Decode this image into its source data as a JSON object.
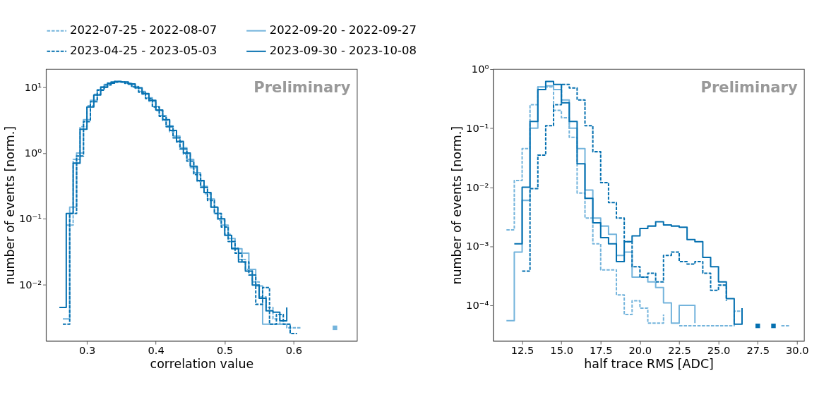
{
  "chart_data": [
    {
      "type": "step",
      "xlabel": "correlation value",
      "ylabel": "number of events [norm.]",
      "log": true,
      "legend": "top",
      "grid": false,
      "xlim": [
        0.2406,
        0.692
      ],
      "xticks": [
        0.3,
        0.4,
        0.5,
        0.6
      ],
      "ylim": [
        0.00139,
        18.8
      ],
      "yticks": [
        {
          "value": 0.01,
          "label": "10⁻²"
        },
        {
          "value": 0.1,
          "label": "10⁻¹"
        },
        {
          "value": 1,
          "label": "10⁰"
        },
        {
          "value": 10,
          "label": "10¹"
        }
      ],
      "annotations": [
        "Preliminary"
      ],
      "series": [
        {
          "name": "2022-07-25 - 2022-08-07",
          "color": "#74b4dc",
          "line_style": "dashed",
          "x": [
            0.27,
            0.28,
            0.29,
            0.3,
            0.31,
            0.32,
            0.33,
            0.34,
            0.35,
            0.36,
            0.37,
            0.38,
            0.39,
            0.4,
            0.41,
            0.42,
            0.43,
            0.44,
            0.45,
            0.46,
            0.47,
            0.48,
            0.49,
            0.5,
            0.51,
            0.52,
            0.53,
            0.54,
            0.55,
            0.56,
            0.57,
            0.58,
            0.59,
            0.6,
            0.61,
            0.62,
            0.63,
            0.64,
            0.65,
            0.66
          ],
          "values": [
            0.08,
            0.8,
            2.5,
            5.2,
            7.8,
            10,
            11.6,
            12.2,
            11.9,
            11,
            9.6,
            7.8,
            6.1,
            4.4,
            3.1,
            2.1,
            1.45,
            0.95,
            0.6,
            0.37,
            0.24,
            0.15,
            0.095,
            0.058,
            0.036,
            0.024,
            0.017,
            0.011,
            0.0065,
            0.0045,
            0.003,
            0.0025,
            0.0022,
            0.0022,
            0.0022,
            null,
            null,
            null,
            null,
            0.0022
          ]
        },
        {
          "name": "2022-09-20 - 2022-09-27",
          "color": "#74b4dc",
          "line_style": "solid",
          "x": [
            0.265,
            0.275,
            0.285,
            0.295,
            0.305,
            0.315,
            0.325,
            0.335,
            0.345,
            0.355,
            0.365,
            0.375,
            0.385,
            0.395,
            0.405,
            0.415,
            0.425,
            0.435,
            0.445,
            0.455,
            0.465,
            0.475,
            0.485,
            0.495,
            0.505,
            0.515,
            0.525,
            0.535,
            0.545,
            0.555,
            0.565,
            0.575,
            0.585,
            0.595
          ],
          "values": [
            0.003,
            0.15,
            1.0,
            3.2,
            6.3,
            9.2,
            11,
            12,
            12.1,
            11.5,
            10.2,
            8.6,
            6.9,
            5.1,
            3.7,
            2.6,
            1.8,
            1.2,
            0.8,
            0.5,
            0.31,
            0.2,
            0.12,
            0.08,
            0.05,
            0.035,
            0.03,
            0.017,
            0.0095,
            0.0025,
            0.0025,
            0.0025,
            0.0025,
            0.0018
          ]
        },
        {
          "name": "2023-04-25 - 2023-05-03",
          "color": "#0570b0",
          "line_style": "dashed",
          "x": [
            0.265,
            0.275,
            0.285,
            0.295,
            0.305,
            0.315,
            0.325,
            0.335,
            0.345,
            0.355,
            0.365,
            0.375,
            0.385,
            0.395,
            0.405,
            0.415,
            0.425,
            0.435,
            0.445,
            0.455,
            0.465,
            0.475,
            0.485,
            0.495,
            0.505,
            0.515,
            0.525,
            0.535,
            0.545,
            0.555,
            0.565,
            0.575,
            0.585,
            0.595,
            0.605
          ],
          "values": [
            0.0025,
            0.12,
            0.9,
            3.0,
            6.0,
            9.0,
            10.8,
            11.9,
            12,
            11.4,
            10.1,
            8.4,
            6.7,
            5.0,
            3.6,
            2.5,
            1.7,
            1.15,
            0.75,
            0.47,
            0.3,
            0.19,
            0.12,
            0.075,
            0.045,
            0.03,
            0.022,
            0.014,
            0.005,
            0.009,
            0.0025,
            0.0035,
            0.0025,
            0.0018,
            0.0018
          ]
        },
        {
          "name": "2023-09-30 - 2023-10-08",
          "color": "#0570b0",
          "line_style": "solid",
          "x": [
            0.26,
            0.27,
            0.28,
            0.29,
            0.3,
            0.31,
            0.32,
            0.33,
            0.34,
            0.35,
            0.36,
            0.37,
            0.38,
            0.39,
            0.4,
            0.41,
            0.42,
            0.43,
            0.44,
            0.45,
            0.46,
            0.47,
            0.48,
            0.49,
            0.5,
            0.51,
            0.52,
            0.53,
            0.54,
            0.55,
            0.56,
            0.57,
            0.58,
            0.59
          ],
          "values": [
            0.0045,
            0.12,
            0.7,
            2.3,
            5.0,
            7.6,
            10,
            11.5,
            12.2,
            12,
            11.2,
            9.8,
            8.0,
            6.3,
            4.5,
            3.2,
            2.2,
            1.5,
            1.0,
            0.63,
            0.38,
            0.25,
            0.15,
            0.1,
            0.056,
            0.035,
            0.022,
            0.016,
            0.0098,
            0.0062,
            0.004,
            0.0038,
            0.0028,
            0.0045
          ]
        }
      ]
    },
    {
      "type": "step",
      "xlabel": "half trace RMS [ADC]",
      "ylabel": "number of events [norm.]",
      "log": true,
      "grid": false,
      "xlim": [
        10.65,
        30.45
      ],
      "xticks": [
        12.5,
        {
          "value": 15,
          "label": "15.0"
        },
        17.5,
        {
          "value": 20,
          "label": "20.0"
        },
        22.5,
        {
          "value": 25,
          "label": "25.0"
        },
        27.5,
        {
          "value": 30,
          "label": "30.0"
        }
      ],
      "ylim": [
        2.5e-05,
        1
      ],
      "yticks": [
        {
          "value": 0.0001,
          "label": "10⁻⁴"
        },
        {
          "value": 0.001,
          "label": "10⁻³"
        },
        {
          "value": 0.01,
          "label": "10⁻²"
        },
        {
          "value": 0.1,
          "label": "10⁻¹"
        },
        {
          "value": 1,
          "label": "10⁰"
        }
      ],
      "annotations": [
        "Preliminary"
      ],
      "series": [
        {
          "name": "2022-07-25 - 2022-08-07",
          "color": "#74b4dc",
          "line_style": "dashed",
          "x": [
            11.5,
            12,
            12.5,
            13,
            13.5,
            14,
            14.5,
            15,
            15.5,
            16,
            16.5,
            17,
            17.5,
            18,
            18.5,
            19,
            19.5,
            20,
            20.5,
            21,
            21.5,
            22,
            22.5,
            23,
            23.5,
            24,
            24.5,
            25,
            25.5,
            26,
            26.5,
            27,
            27.5,
            28,
            28.5,
            29,
            29.5
          ],
          "values": [
            0.0019,
            0.013,
            0.045,
            0.25,
            0.5,
            0.5,
            0.2,
            0.15,
            0.07,
            0.008,
            0.003,
            0.0011,
            0.0004,
            0.0004,
            0.00015,
            7e-05,
            0.00012,
            9e-05,
            5e-05,
            5e-05,
            7e-05,
            null,
            4.5e-05,
            4.5e-05,
            4.5e-05,
            4.5e-05,
            4.5e-05,
            4.5e-05,
            4.5e-05,
            8e-05,
            8e-05,
            null,
            null,
            null,
            null,
            4.5e-05,
            4.5e-05
          ]
        },
        {
          "name": "2022-09-20 - 2022-09-27",
          "color": "#74b4dc",
          "line_style": "solid",
          "x": [
            11.5,
            12,
            12.5,
            13,
            13.5,
            14,
            14.5,
            15,
            15.5,
            16,
            16.5,
            17,
            17.5,
            18,
            18.5,
            19,
            19.5,
            20,
            20.5,
            21,
            21.5,
            22,
            22.5,
            23,
            23.5
          ],
          "values": [
            5.5e-05,
            0.0008,
            0.006,
            0.1,
            0.5,
            0.52,
            0.45,
            0.3,
            0.1,
            0.045,
            0.009,
            0.003,
            0.0022,
            0.0016,
            0.0007,
            0.0008,
            0.0003,
            0.0003,
            0.00025,
            0.0002,
            0.00011,
            5e-05,
            0.0001,
            0.0001,
            5e-05
          ]
        },
        {
          "name": "2023-04-25 - 2023-05-03",
          "color": "#0570b0",
          "line_style": "dashed",
          "x": [
            12.5,
            13,
            13.5,
            14,
            14.5,
            15,
            15.5,
            16,
            16.5,
            17,
            17.5,
            18,
            18.5,
            19,
            19.5,
            20,
            20.5,
            21,
            21.5,
            22,
            22.5,
            23,
            23.5,
            24,
            24.5,
            25,
            25.5
          ],
          "values": [
            0.00038,
            0.0095,
            0.035,
            0.11,
            0.25,
            0.55,
            0.48,
            0.3,
            0.11,
            0.04,
            0.012,
            0.0055,
            0.003,
            0.0012,
            0.00045,
            0.0003,
            0.00035,
            0.00025,
            0.0007,
            0.0008,
            0.00055,
            0.0005,
            0.00055,
            0.00035,
            0.00018,
            0.00022,
            0.00012
          ]
        },
        {
          "name": "2023-09-30 - 2023-10-08",
          "color": "#0570b0",
          "line_style": "solid",
          "x": [
            12,
            12.5,
            13,
            13.5,
            14,
            14.5,
            15,
            15.5,
            16,
            16.5,
            17,
            17.5,
            18,
            18.5,
            19,
            19.5,
            20,
            20.5,
            21,
            21.5,
            22,
            22.5,
            23,
            23.5,
            24,
            24.5,
            25,
            25.5,
            26,
            26.5,
            27,
            27.5,
            28,
            28.5
          ],
          "values": [
            0.0011,
            0.01,
            0.13,
            0.45,
            0.62,
            0.55,
            0.27,
            0.13,
            0.025,
            0.0065,
            0.0025,
            0.0014,
            0.0011,
            0.00055,
            0.0012,
            0.0015,
            0.002,
            0.0022,
            0.0026,
            0.0023,
            0.0022,
            0.0021,
            0.0013,
            0.0012,
            0.00065,
            0.00045,
            0.00025,
            0.00013,
            4.8e-05,
            9e-05,
            null,
            4.5e-05,
            null,
            4.5e-05
          ]
        }
      ]
    }
  ]
}
